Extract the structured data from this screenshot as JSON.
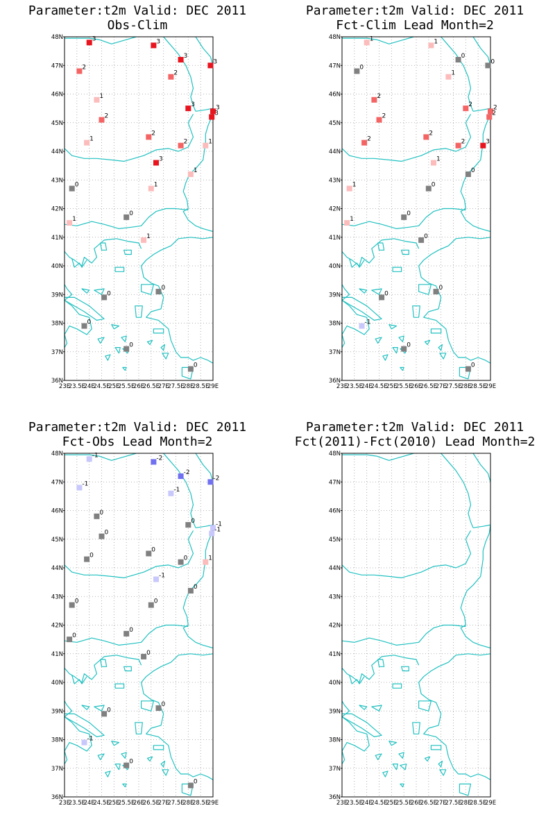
{
  "panels": [
    {
      "title_line1": "Parameter:t2m Valid: DEC 2011",
      "title_line2": "Obs-Clim",
      "stations": [
        {
          "lon": 24.0,
          "lat": 47.8,
          "value": 3
        },
        {
          "lon": 26.6,
          "lat": 47.7,
          "value": 3
        },
        {
          "lon": 27.7,
          "lat": 47.2,
          "value": 3
        },
        {
          "lon": 28.9,
          "lat": 47.0,
          "value": 3
        },
        {
          "lon": 23.6,
          "lat": 46.8,
          "value": 2
        },
        {
          "lon": 27.3,
          "lat": 46.6,
          "value": 2
        },
        {
          "lon": 24.3,
          "lat": 45.8,
          "value": 1
        },
        {
          "lon": 28.0,
          "lat": 45.5,
          "value": 3
        },
        {
          "lon": 29.0,
          "lat": 45.4,
          "value": 3
        },
        {
          "lon": 28.95,
          "lat": 45.2,
          "value": 3
        },
        {
          "lon": 24.5,
          "lat": 45.1,
          "value": 2
        },
        {
          "lon": 26.4,
          "lat": 44.5,
          "value": 2
        },
        {
          "lon": 23.9,
          "lat": 44.3,
          "value": 1
        },
        {
          "lon": 27.7,
          "lat": 44.2,
          "value": 2
        },
        {
          "lon": 28.7,
          "lat": 44.2,
          "value": 1
        },
        {
          "lon": 26.7,
          "lat": 43.6,
          "value": 3
        },
        {
          "lon": 28.1,
          "lat": 43.2,
          "value": 1
        },
        {
          "lon": 23.3,
          "lat": 42.7,
          "value": 0
        },
        {
          "lon": 26.5,
          "lat": 42.7,
          "value": 1
        },
        {
          "lon": 25.5,
          "lat": 41.7,
          "value": 0
        },
        {
          "lon": 23.2,
          "lat": 41.5,
          "value": 1
        },
        {
          "lon": 26.2,
          "lat": 40.9,
          "value": 1
        },
        {
          "lon": 26.8,
          "lat": 39.1,
          "value": 0
        },
        {
          "lon": 24.6,
          "lat": 38.9,
          "value": 0
        },
        {
          "lon": 23.8,
          "lat": 37.9,
          "value": 0
        },
        {
          "lon": 25.5,
          "lat": 37.1,
          "value": 0
        },
        {
          "lon": 28.1,
          "lat": 36.4,
          "value": 0
        }
      ]
    },
    {
      "title_line1": "Parameter:t2m Valid: DEC 2011",
      "title_line2": "Fct-Clim Lead Month=2",
      "stations": [
        {
          "lon": 24.0,
          "lat": 47.8,
          "value": 1
        },
        {
          "lon": 26.6,
          "lat": 47.7,
          "value": 1
        },
        {
          "lon": 27.7,
          "lat": 47.2,
          "value": 0
        },
        {
          "lon": 28.9,
          "lat": 47.0,
          "value": 0
        },
        {
          "lon": 23.6,
          "lat": 46.8,
          "value": 0
        },
        {
          "lon": 27.3,
          "lat": 46.6,
          "value": 1
        },
        {
          "lon": 24.3,
          "lat": 45.8,
          "value": 2
        },
        {
          "lon": 28.0,
          "lat": 45.5,
          "value": 2
        },
        {
          "lon": 29.0,
          "lat": 45.4,
          "value": 2
        },
        {
          "lon": 28.95,
          "lat": 45.2,
          "value": 2
        },
        {
          "lon": 24.5,
          "lat": 45.1,
          "value": 2
        },
        {
          "lon": 26.4,
          "lat": 44.5,
          "value": 2
        },
        {
          "lon": 23.9,
          "lat": 44.3,
          "value": 2
        },
        {
          "lon": 27.7,
          "lat": 44.2,
          "value": 2
        },
        {
          "lon": 28.7,
          "lat": 44.2,
          "value": 3
        },
        {
          "lon": 26.7,
          "lat": 43.6,
          "value": 1
        },
        {
          "lon": 28.1,
          "lat": 43.2,
          "value": 0
        },
        {
          "lon": 23.3,
          "lat": 42.7,
          "value": 1
        },
        {
          "lon": 26.5,
          "lat": 42.7,
          "value": 0
        },
        {
          "lon": 25.5,
          "lat": 41.7,
          "value": 0
        },
        {
          "lon": 23.2,
          "lat": 41.5,
          "value": 1
        },
        {
          "lon": 26.2,
          "lat": 40.9,
          "value": 0
        },
        {
          "lon": 26.8,
          "lat": 39.1,
          "value": 0
        },
        {
          "lon": 24.6,
          "lat": 38.9,
          "value": 0
        },
        {
          "lon": 23.8,
          "lat": 37.9,
          "value": -1
        },
        {
          "lon": 25.5,
          "lat": 37.1,
          "value": 0
        },
        {
          "lon": 28.1,
          "lat": 36.4,
          "value": 0
        }
      ]
    },
    {
      "title_line1": "Parameter:t2m Valid: DEC 2011",
      "title_line2": "Fct-Obs Lead Month=2",
      "stations": [
        {
          "lon": 24.0,
          "lat": 47.8,
          "value": -1
        },
        {
          "lon": 26.6,
          "lat": 47.7,
          "value": -2
        },
        {
          "lon": 27.7,
          "lat": 47.2,
          "value": -2
        },
        {
          "lon": 28.9,
          "lat": 47.0,
          "value": -2
        },
        {
          "lon": 23.6,
          "lat": 46.8,
          "value": -1
        },
        {
          "lon": 27.3,
          "lat": 46.6,
          "value": -1
        },
        {
          "lon": 24.3,
          "lat": 45.8,
          "value": 0
        },
        {
          "lon": 28.0,
          "lat": 45.5,
          "value": 0
        },
        {
          "lon": 29.0,
          "lat": 45.4,
          "value": -1
        },
        {
          "lon": 28.95,
          "lat": 45.2,
          "value": -1
        },
        {
          "lon": 24.5,
          "lat": 45.1,
          "value": 0
        },
        {
          "lon": 26.4,
          "lat": 44.5,
          "value": 0
        },
        {
          "lon": 23.9,
          "lat": 44.3,
          "value": 0
        },
        {
          "lon": 27.7,
          "lat": 44.2,
          "value": 0
        },
        {
          "lon": 28.7,
          "lat": 44.2,
          "value": 1
        },
        {
          "lon": 26.7,
          "lat": 43.6,
          "value": -1
        },
        {
          "lon": 28.1,
          "lat": 43.2,
          "value": 0
        },
        {
          "lon": 23.3,
          "lat": 42.7,
          "value": 0
        },
        {
          "lon": 26.5,
          "lat": 42.7,
          "value": 0
        },
        {
          "lon": 25.5,
          "lat": 41.7,
          "value": 0
        },
        {
          "lon": 23.2,
          "lat": 41.5,
          "value": 0
        },
        {
          "lon": 26.2,
          "lat": 40.9,
          "value": 0
        },
        {
          "lon": 26.8,
          "lat": 39.1,
          "value": 0
        },
        {
          "lon": 24.6,
          "lat": 38.9,
          "value": 0
        },
        {
          "lon": 23.8,
          "lat": 37.9,
          "value": -1
        },
        {
          "lon": 25.5,
          "lat": 37.1,
          "value": 0
        },
        {
          "lon": 28.1,
          "lat": 36.4,
          "value": 0
        }
      ]
    },
    {
      "title_line1": "Parameter:t2m Valid: DEC 2011",
      "title_line2": "Fct(2011)-Fct(2010) Lead Month=2",
      "stations": []
    }
  ],
  "map": {
    "lon_range": [
      23,
      29
    ],
    "lat_range": [
      36,
      48
    ],
    "lon_tick_labels": [
      "23E",
      "23.5E",
      "24E",
      "24.5E",
      "25E",
      "25.5E",
      "26E",
      "26.5E",
      "27E",
      "27.5E",
      "28E",
      "28.5E",
      "29E"
    ],
    "lat_tick_labels": [
      "36N",
      "37N",
      "38N",
      "39N",
      "40N",
      "41N",
      "42N",
      "43N",
      "44N",
      "45N",
      "46N",
      "47N",
      "48N"
    ],
    "gridlines": "dotted",
    "coastline_color": "#20c0c0",
    "frame_color": "#000000"
  },
  "color_scale": {
    "3": "#e8141e",
    "2": "#f46464",
    "1": "#fcbcbc",
    "0": "#808080",
    "-1": "#c8c8fc",
    "-2": "#7070f0"
  }
}
